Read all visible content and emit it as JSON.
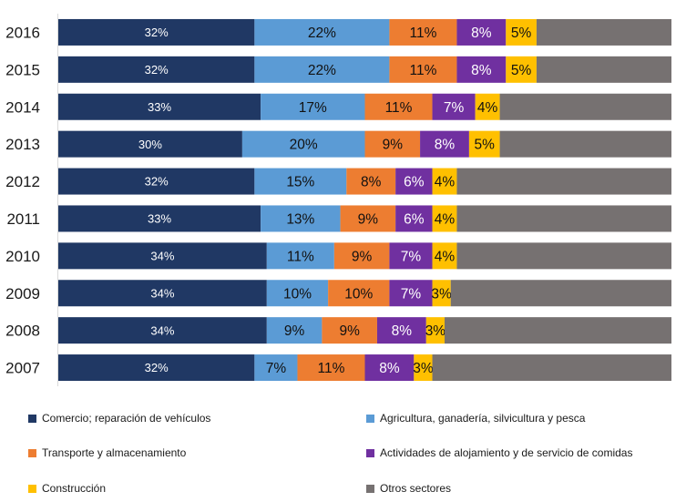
{
  "chart_data": {
    "type": "bar",
    "orientation": "horizontal",
    "stacked": "percent",
    "title": "",
    "xlabel": "",
    "ylabel": "",
    "categories": [
      "2016",
      "2015",
      "2014",
      "2013",
      "2012",
      "2011",
      "2010",
      "2009",
      "2008",
      "2007"
    ],
    "series": [
      {
        "name": "Comercio; reparación de vehículos",
        "color": "#203864",
        "values": [
          32,
          32,
          33,
          30,
          32,
          33,
          34,
          34,
          34,
          32
        ],
        "labels": [
          "32%",
          "32%",
          "33%",
          "30%",
          "32%",
          "33%",
          "34%",
          "34%",
          "34%",
          "32%"
        ]
      },
      {
        "name": "Agricultura, ganadería,  silvicultura  y pesca",
        "color": "#5B9BD5",
        "values": [
          22,
          22,
          17,
          20,
          15,
          13,
          11,
          10,
          9,
          7
        ],
        "labels": [
          "22%",
          "22%",
          "17%",
          "20%",
          "15%",
          "13%",
          "11%",
          "10%",
          "9%",
          "7%"
        ]
      },
      {
        "name": "Transporte y almacenamiento",
        "color": "#ED7D31",
        "values": [
          11,
          11,
          11,
          9,
          8,
          9,
          9,
          10,
          9,
          11
        ],
        "labels": [
          "11%",
          "11%",
          "11%",
          "9%",
          "8%",
          "9%",
          "9%",
          "10%",
          "9%",
          "11%"
        ]
      },
      {
        "name": "Actividades  de alojamiento  y de servicio de comidas",
        "color": "#7030A0",
        "values": [
          8,
          8,
          7,
          8,
          6,
          6,
          7,
          7,
          8,
          8
        ],
        "labels": [
          "8%",
          "8%",
          "7%",
          "8%",
          "6%",
          "6%",
          "7%",
          "7%",
          "8%",
          "8%"
        ]
      },
      {
        "name": "Construcción",
        "color": "#FFC000",
        "values": [
          5,
          5,
          4,
          5,
          4,
          4,
          4,
          3,
          3,
          3
        ],
        "labels": [
          "5%",
          "5%",
          "4%",
          "5%",
          "4%",
          "4%",
          "4%",
          "3%",
          "3%",
          "3%"
        ]
      },
      {
        "name": "Otros sectores",
        "color": "#767171",
        "values": [
          22,
          22,
          28,
          28,
          35,
          35,
          35,
          36,
          37,
          39
        ],
        "labels": [
          "",
          "",
          "",
          "",
          "",
          "",
          "",
          "",
          "",
          ""
        ]
      }
    ],
    "xlim": [
      0,
      100
    ],
    "grid": false,
    "legend_position": "bottom"
  }
}
